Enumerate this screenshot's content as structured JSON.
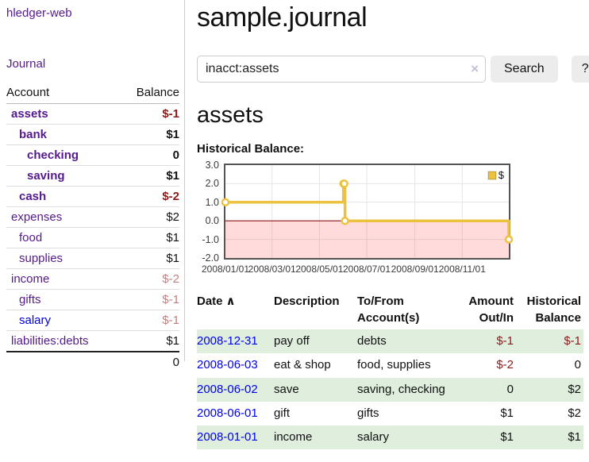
{
  "colors": {
    "link_purple": "#551a8b",
    "link_blue": "#0000ee",
    "negative": "#8b1a1a",
    "negative_dim": "#c08080",
    "row_green": "#dfeedd",
    "chart_gold": "#edc240",
    "chart_negative_zone": "#ffdbdb"
  },
  "sidebar": {
    "brand": "hledger-web",
    "journal_link": "Journal",
    "header": {
      "account": "Account",
      "balance": "Balance"
    },
    "accounts": [
      {
        "name": "assets",
        "depth": 1,
        "balance": "$-1",
        "inacct": true,
        "name_link": "visited",
        "balance_tone": "neg"
      },
      {
        "name": "bank",
        "depth": 2,
        "balance": "$1",
        "inacct": true,
        "name_link": "visited",
        "balance_tone": "pos"
      },
      {
        "name": "checking",
        "depth": 3,
        "balance": "0",
        "inacct": true,
        "name_link": "visited",
        "balance_tone": "pos"
      },
      {
        "name": "saving",
        "depth": 3,
        "balance": "$1",
        "inacct": true,
        "name_link": "visited",
        "balance_tone": "pos"
      },
      {
        "name": "cash",
        "depth": 2,
        "balance": "$-2",
        "inacct": true,
        "name_link": "visited",
        "balance_tone": "neg"
      },
      {
        "name": "expenses",
        "depth": 1,
        "balance": "$2",
        "inacct": false,
        "name_link": "visited",
        "balance_tone": "pos"
      },
      {
        "name": "food",
        "depth": 2,
        "balance": "$1",
        "inacct": false,
        "name_link": "visited",
        "balance_tone": "pos"
      },
      {
        "name": "supplies",
        "depth": 2,
        "balance": "$1",
        "inacct": false,
        "name_link": "visited",
        "balance_tone": "pos"
      },
      {
        "name": "income",
        "depth": 1,
        "balance": "$-2",
        "inacct": false,
        "name_link": "visited",
        "balance_tone": "dim-neg"
      },
      {
        "name": "gifts",
        "depth": 2,
        "balance": "$-1",
        "inacct": false,
        "name_link": "visited",
        "balance_tone": "dim-neg"
      },
      {
        "name": "salary",
        "depth": 2,
        "balance": "$-1",
        "inacct": false,
        "name_link": "unvisited",
        "balance_tone": "dim-neg"
      },
      {
        "name": "liabilities:debts",
        "depth": 1,
        "balance": "$1",
        "inacct": false,
        "name_link": "visited",
        "balance_tone": "pos"
      }
    ],
    "total": "0"
  },
  "main": {
    "title": "sample.journal",
    "search": {
      "value": "inacct:assets",
      "clear_icon": "×",
      "button": "Search",
      "help": "?"
    },
    "account_heading": "assets",
    "chart_label": "Historical Balance:"
  },
  "chart_data": {
    "type": "line",
    "title": "Historical Balance",
    "step": true,
    "ylim": [
      -2.0,
      3.0
    ],
    "yticks": [
      3.0,
      2.0,
      1.0,
      0.0,
      -1.0,
      -2.0
    ],
    "ytick_labels": [
      "3.0",
      "2.0",
      "1.0",
      "0.0",
      "-1.0",
      "-2.0"
    ],
    "xticks": [
      "2008/01/01",
      "2008/03/01",
      "2008/05/01",
      "2008/07/01",
      "2008/09/01",
      "2008/11/01"
    ],
    "grid": true,
    "legend": {
      "label": "$",
      "position": "top-right"
    },
    "series": [
      {
        "name": "$",
        "color": "#edc240",
        "points": [
          [
            "2008-01-01",
            1
          ],
          [
            "2008-06-01",
            2
          ],
          [
            "2008-06-02",
            2
          ],
          [
            "2008-06-03",
            0
          ],
          [
            "2008-12-31",
            -1
          ]
        ]
      }
    ],
    "negative_region_shaded": true,
    "zero_line_color": "#8b1a1a"
  },
  "register": {
    "sort_icon": "∧",
    "columns": [
      {
        "label": "Date"
      },
      {
        "label": "Description"
      },
      {
        "label": "To/From Account(s)"
      },
      {
        "label": "Amount Out/In"
      },
      {
        "label": "Historical Balance"
      }
    ],
    "rows": [
      {
        "date": "2008-12-31",
        "description": "pay off",
        "accounts": "debts",
        "amount": "$-1",
        "amount_tone": "neg",
        "balance": "$-1",
        "balance_tone": "neg"
      },
      {
        "date": "2008-06-03",
        "description": "eat & shop",
        "accounts": "food, supplies",
        "amount": "$-2",
        "amount_tone": "neg",
        "balance": "0",
        "balance_tone": "pos"
      },
      {
        "date": "2008-06-02",
        "description": "save",
        "accounts": "saving, checking",
        "amount": "0",
        "amount_tone": "pos",
        "balance": "$2",
        "balance_tone": "pos"
      },
      {
        "date": "2008-06-01",
        "description": "gift",
        "accounts": "gifts",
        "amount": "$1",
        "amount_tone": "pos",
        "balance": "$2",
        "balance_tone": "pos"
      },
      {
        "date": "2008-01-01",
        "description": "income",
        "accounts": "salary",
        "amount": "$1",
        "amount_tone": "pos",
        "balance": "$1",
        "balance_tone": "pos"
      }
    ]
  }
}
